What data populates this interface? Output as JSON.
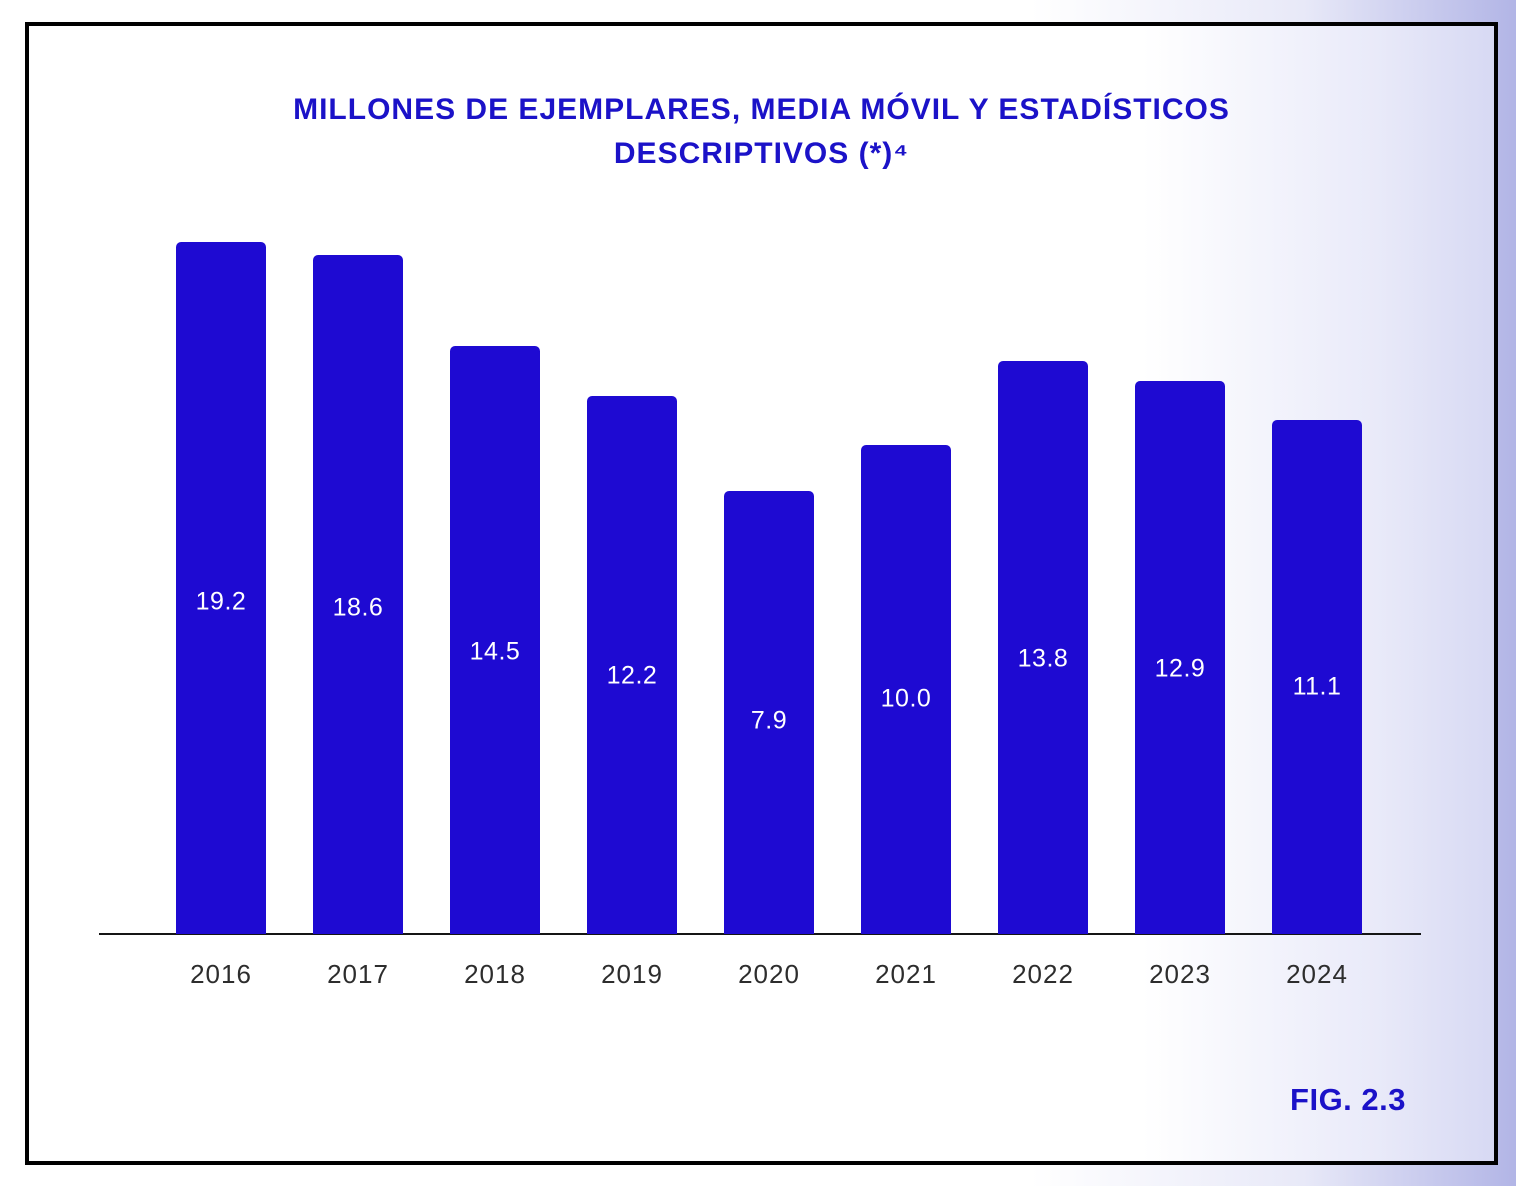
{
  "figure": {
    "label": "FIG. 2.3"
  },
  "chart_data": {
    "type": "bar",
    "title": "MILLONES DE EJEMPLARES, MEDIA MÓVIL Y ESTADÍSTICOS DESCRIPTIVOS (*)⁴",
    "title_lines": [
      "MILLONES DE EJEMPLARES, MEDIA MÓVIL Y ESTADÍSTICOS",
      "DESCRIPTIVOS (*)⁴"
    ],
    "categories": [
      "2016",
      "2017",
      "2018",
      "2019",
      "2020",
      "2021",
      "2022",
      "2023",
      "2024"
    ],
    "values": [
      19.2,
      18.6,
      14.5,
      12.2,
      7.9,
      10.0,
      13.8,
      12.9,
      11.1
    ],
    "value_labels": [
      "19.2",
      "18.6",
      "14.5",
      "12.2",
      "7.9",
      "10.0",
      "13.8",
      "12.9",
      "11.1"
    ],
    "xlabel": "",
    "ylabel": "",
    "legend": "none",
    "grid": false,
    "value_labels_position": "inside-middle",
    "bar_color": "#1e0ad2",
    "value_label_color": "#ffffff",
    "title_color": "#1b12c8",
    "axis_line_color": "#151515",
    "tick_label_color": "#2d2d2d"
  }
}
